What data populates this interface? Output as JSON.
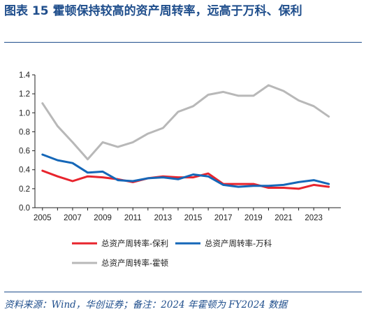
{
  "header": {
    "figure_label": "图表 15",
    "title": "霍顿保持较高的资产周转率，远高于万科、保利"
  },
  "source_note": "资料来源：Wind，华创证券；备注：2024 年霍顿为 FY2024 数据",
  "chart_data": {
    "type": "line",
    "x": [
      2005,
      2006,
      2007,
      2008,
      2009,
      2010,
      2011,
      2012,
      2013,
      2014,
      2015,
      2016,
      2017,
      2018,
      2019,
      2020,
      2021,
      2022,
      2023,
      2024
    ],
    "x_tick_labels": [
      "2005",
      "2007",
      "2009",
      "2011",
      "2013",
      "2015",
      "2017",
      "2019",
      "2021",
      "2023"
    ],
    "ylim": [
      0,
      1.4
    ],
    "y_tick_labels": [
      "0.0",
      "0.2",
      "0.4",
      "0.6",
      "0.8",
      "1.0",
      "1.2",
      "1.4"
    ],
    "grid": false,
    "legend_position": "bottom",
    "series": [
      {
        "name": "总资产周转率-保利",
        "color": "#e8242d",
        "values": [
          0.39,
          0.33,
          0.28,
          0.33,
          0.32,
          0.3,
          0.27,
          0.31,
          0.33,
          0.32,
          0.32,
          0.36,
          0.25,
          0.25,
          0.25,
          0.21,
          0.21,
          0.2,
          0.24,
          0.22
        ]
      },
      {
        "name": "总资产周转率-万科",
        "color": "#1567b8",
        "values": [
          0.56,
          0.5,
          0.47,
          0.37,
          0.38,
          0.29,
          0.28,
          0.31,
          0.32,
          0.3,
          0.35,
          0.33,
          0.24,
          0.22,
          0.23,
          0.23,
          0.24,
          0.27,
          0.29,
          0.25
        ]
      },
      {
        "name": "总资产周转率-霍顿",
        "color": "#b8b8b8",
        "values": [
          1.1,
          0.86,
          0.69,
          0.51,
          0.69,
          0.64,
          0.69,
          0.78,
          0.84,
          1.01,
          1.07,
          1.19,
          1.22,
          1.18,
          1.18,
          1.29,
          1.23,
          1.13,
          1.07,
          0.96
        ]
      }
    ]
  }
}
